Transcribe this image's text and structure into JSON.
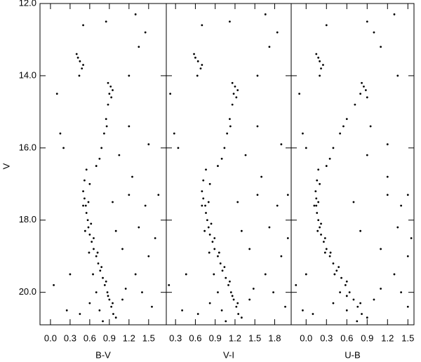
{
  "chart_data": [
    {
      "type": "scatter",
      "xlabel": "B-V",
      "ylabel": "V",
      "color": "#000000",
      "xlim": [
        -0.16,
        1.77
      ],
      "xticks": [
        {
          "value": 0,
          "label": "0.0"
        },
        0.3,
        0.6,
        0.9,
        1.2,
        1.5
      ],
      "ylim": [
        12,
        20.9
      ],
      "yticks": [
        {
          "value": 12,
          "label": "12.0"
        },
        {
          "value": 14,
          "label": "14.0"
        },
        {
          "value": 16,
          "label": "16.0"
        },
        {
          "value": 18,
          "label": "18.0"
        },
        {
          "value": 20,
          "label": "20.0"
        }
      ],
      "x": [
        0.55,
        0.52,
        0.5,
        0.52,
        0.54,
        0.55,
        0.57,
        0.58,
        0.6,
        0.63,
        0.66,
        0.7,
        0.73,
        0.76,
        0.8,
        0.83,
        0.87,
        0.9,
        0.93,
        0.96,
        0.6,
        0.58,
        0.62,
        0.66,
        0.72,
        0.78,
        0.85,
        0.88,
        0.95,
        1.0,
        0.5,
        0.53,
        0.59,
        0.65,
        0.7,
        0.75,
        0.6,
        0.8,
        0.45,
        0.7,
        0.78,
        0.82,
        0.85,
        0.88,
        0.9,
        0.92,
        0.88,
        0.93,
        0.95,
        0.86,
        0.75,
        0.4,
        0.45,
        0.48,
        0.42,
        0.5,
        0.44,
        1.2,
        1.35,
        1.5,
        1.3,
        1.1,
        1.4,
        1.6,
        1.25,
        1.05,
        1.45,
        1.55,
        1.15,
        0.1,
        0.15,
        0.2,
        0.05,
        1.3,
        1.45,
        0.5,
        0.85,
        1.2,
        1.35,
        1.65,
        0.95,
        1.0,
        1.1,
        0.3,
        0.25,
        1.2,
        1.5
      ],
      "y": [
        16.6,
        16.9,
        17.2,
        17.4,
        17.6,
        17.8,
        18.0,
        18.2,
        18.4,
        18.6,
        18.8,
        19.0,
        19.2,
        19.4,
        19.6,
        19.8,
        20.0,
        20.2,
        20.4,
        20.6,
        17.0,
        17.5,
        18.1,
        18.5,
        18.9,
        19.3,
        19.7,
        20.1,
        20.3,
        20.7,
        17.6,
        18.3,
        18.9,
        19.5,
        20.0,
        20.5,
        20.3,
        20.8,
        20.6,
        16.5,
        16.0,
        15.6,
        15.2,
        14.8,
        14.5,
        14.3,
        14.2,
        14.6,
        14.4,
        15.4,
        16.3,
        13.4,
        13.6,
        13.8,
        13.5,
        13.7,
        14.0,
        17.3,
        18.2,
        19.0,
        19.5,
        18.8,
        20.0,
        18.5,
        16.8,
        16.2,
        17.6,
        20.4,
        19.9,
        14.5,
        15.6,
        16.0,
        19.8,
        12.3,
        12.8,
        12.6,
        12.5,
        14.0,
        13.2,
        17.3,
        17.5,
        18.3,
        20.2,
        19.5,
        20.5,
        15.4,
        15.9
      ]
    },
    {
      "type": "scatter",
      "xlabel": "V-I",
      "color": "#000000",
      "xlim": [
        0.16,
        2.05
      ],
      "xticks": [
        0.3,
        0.6,
        0.9,
        1.2,
        1.5,
        1.8
      ],
      "x": [
        0.76,
        0.72,
        0.7,
        0.72,
        0.75,
        0.76,
        0.78,
        0.8,
        0.82,
        0.86,
        0.89,
        0.94,
        0.98,
        1.01,
        1.06,
        1.1,
        1.14,
        1.18,
        1.22,
        1.25,
        0.82,
        0.8,
        0.84,
        0.89,
        0.96,
        1.04,
        1.12,
        1.16,
        1.24,
        1.3,
        0.7,
        0.74,
        0.81,
        0.88,
        0.94,
        1.0,
        0.82,
        1.06,
        0.64,
        0.94,
        1.04,
        1.08,
        1.12,
        1.16,
        1.18,
        1.2,
        1.16,
        1.22,
        1.24,
        1.13,
        1.0,
        0.58,
        0.64,
        0.68,
        0.6,
        0.7,
        0.63,
        1.54,
        1.72,
        1.9,
        1.66,
        1.42,
        1.78,
        2.0,
        1.6,
        1.36,
        1.84,
        1.96,
        1.48,
        0.22,
        0.28,
        0.34,
        0.2,
        1.66,
        1.84,
        0.7,
        1.12,
        1.54,
        1.72,
        2.0,
        1.24,
        1.3,
        1.42,
        0.46,
        0.4,
        1.54,
        1.9
      ],
      "y": [
        16.6,
        16.9,
        17.2,
        17.4,
        17.6,
        17.8,
        18.0,
        18.2,
        18.4,
        18.6,
        18.8,
        19.0,
        19.2,
        19.4,
        19.6,
        19.8,
        20.0,
        20.2,
        20.4,
        20.6,
        17.0,
        17.5,
        18.1,
        18.5,
        18.9,
        19.3,
        19.7,
        20.1,
        20.3,
        20.7,
        17.6,
        18.3,
        18.9,
        19.5,
        20.0,
        20.5,
        20.3,
        20.8,
        20.6,
        16.5,
        16.0,
        15.6,
        15.2,
        14.8,
        14.5,
        14.3,
        14.2,
        14.6,
        14.4,
        15.4,
        16.3,
        13.4,
        13.6,
        13.8,
        13.5,
        13.7,
        14.0,
        17.3,
        18.2,
        19.0,
        19.5,
        18.8,
        20.0,
        18.5,
        16.8,
        16.2,
        17.6,
        20.4,
        19.9,
        14.5,
        15.6,
        16.0,
        19.8,
        12.3,
        12.8,
        12.6,
        12.5,
        14.0,
        13.2,
        17.3,
        17.5,
        18.3,
        20.2,
        19.5,
        20.5,
        15.4,
        15.9
      ]
    },
    {
      "type": "scatter",
      "xlabel": "U-B",
      "color": "#000000",
      "xlim": [
        -0.22,
        1.59
      ],
      "xticks": [
        {
          "value": 0,
          "label": "0.0"
        },
        0.3,
        0.6,
        0.9,
        1.2,
        1.5
      ],
      "x": [
        0.18,
        0.16,
        0.14,
        0.15,
        0.15,
        0.16,
        0.18,
        0.2,
        0.22,
        0.26,
        0.3,
        0.35,
        0.4,
        0.45,
        0.52,
        0.58,
        0.64,
        0.7,
        0.76,
        0.82,
        0.2,
        0.18,
        0.22,
        0.28,
        0.36,
        0.48,
        0.6,
        0.6,
        0.8,
        0.9,
        0.12,
        0.17,
        0.28,
        0.42,
        0.5,
        0.6,
        0.4,
        0.75,
        0.1,
        0.3,
        0.4,
        0.5,
        0.6,
        0.72,
        0.8,
        0.85,
        0.82,
        0.9,
        0.88,
        0.55,
        0.35,
        0.15,
        0.2,
        0.22,
        0.18,
        0.25,
        0.2,
        1.2,
        1.35,
        1.5,
        1.3,
        1.1,
        1.4,
        1.55,
        1.2,
        0.9,
        1.4,
        1.5,
        1.1,
        -0.1,
        -0.05,
        0.0,
        -0.15,
        1.3,
        1.0,
        0.3,
        0.9,
        1.35,
        1.1,
        1.5,
        0.7,
        0.8,
        1.0,
        0.0,
        -0.05,
        0.95,
        1.2
      ],
      "y": [
        16.6,
        16.9,
        17.2,
        17.4,
        17.6,
        17.8,
        18.0,
        18.2,
        18.4,
        18.6,
        18.8,
        19.0,
        19.2,
        19.4,
        19.6,
        19.8,
        20.0,
        20.2,
        20.4,
        20.6,
        17.0,
        17.5,
        18.1,
        18.5,
        18.9,
        19.3,
        19.7,
        20.1,
        20.3,
        20.7,
        17.6,
        18.3,
        18.9,
        19.5,
        20.0,
        20.5,
        20.3,
        20.8,
        20.6,
        16.5,
        16.0,
        15.6,
        15.2,
        14.8,
        14.5,
        14.3,
        14.2,
        14.6,
        14.4,
        15.4,
        16.3,
        13.4,
        13.6,
        13.8,
        13.5,
        13.7,
        14.0,
        17.3,
        18.2,
        19.0,
        19.5,
        18.8,
        20.0,
        18.5,
        16.8,
        16.2,
        17.6,
        20.4,
        19.9,
        14.5,
        15.6,
        16.0,
        19.8,
        12.3,
        12.8,
        12.6,
        12.5,
        14.0,
        13.2,
        17.3,
        17.5,
        18.3,
        20.2,
        19.5,
        20.5,
        15.4,
        15.9
      ]
    }
  ]
}
